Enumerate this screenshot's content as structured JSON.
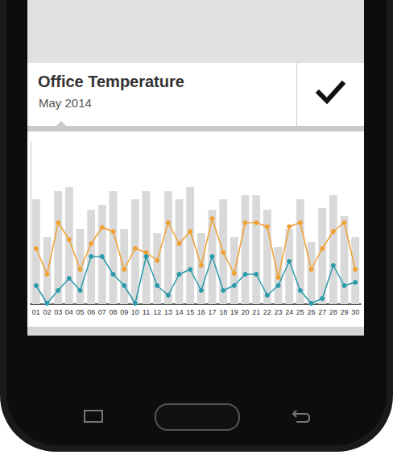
{
  "chart_data": {
    "type": "bar",
    "title": "Office Temperature",
    "subtitle": "May 2014",
    "categories": [
      "01",
      "02",
      "03",
      "04",
      "05",
      "06",
      "07",
      "08",
      "09",
      "10",
      "11",
      "12",
      "13",
      "14",
      "15",
      "16",
      "17",
      "18",
      "19",
      "20",
      "21",
      "22",
      "23",
      "24",
      "25",
      "26",
      "27",
      "28",
      "29",
      "30"
    ],
    "series": [
      {
        "type": "bar",
        "color": "#d9d9d9",
        "values": [
          65,
          41.5,
          70,
          72.5,
          46.5,
          58.5,
          61.5,
          70,
          46.5,
          65,
          70,
          44,
          70,
          65,
          72.5,
          44,
          58.5,
          65,
          41.5,
          67.5,
          67.5,
          58.5,
          35.5,
          46.5,
          65,
          38.5,
          59.5,
          67.5,
          54.5,
          41.5
        ]
      },
      {
        "type": "line",
        "color": "#f0a132",
        "marker": "circle",
        "values": [
          34.5,
          18.5,
          50.5,
          40,
          21.5,
          37.5,
          47.5,
          45,
          21.5,
          34.5,
          32,
          27,
          50.5,
          37.5,
          45,
          24,
          53,
          32,
          19,
          50.5,
          50.5,
          48,
          16.5,
          48,
          50.5,
          21.5,
          34.5,
          45,
          50.5,
          21.5
        ]
      },
      {
        "type": "line",
        "color": "#2a9bab",
        "marker": "circle",
        "values": [
          11.5,
          0.5,
          8.5,
          16,
          8.5,
          29.5,
          29.5,
          18.5,
          11.5,
          0.5,
          29.5,
          11.5,
          5.5,
          18.5,
          21.5,
          8.5,
          29.5,
          8.5,
          11.5,
          18.5,
          18.5,
          5.5,
          11.5,
          26.5,
          8.5,
          0.5,
          3.5,
          24,
          11.5,
          13.5
        ]
      }
    ],
    "ylim": [
      0,
      100
    ],
    "tick_labels": "x",
    "grid": false
  }
}
